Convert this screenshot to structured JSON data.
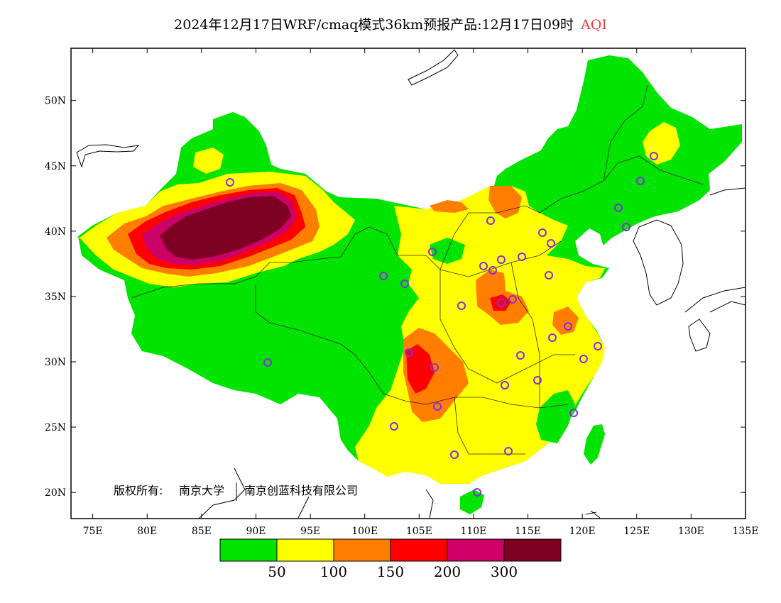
{
  "title": {
    "main": "2024年12月17日WRF/cmaq模式36km预报产品:12月17日09时",
    "variable": "AQI"
  },
  "axes": {
    "x_ticks": [
      "75E",
      "80E",
      "85E",
      "90E",
      "95E",
      "100E",
      "105E",
      "110E",
      "115E",
      "120E",
      "125E",
      "130E",
      "135E"
    ],
    "y_ticks": [
      "50N",
      "45N",
      "40N",
      "35N",
      "30N",
      "25N",
      "20N"
    ]
  },
  "copyright": {
    "label": "版权所有:",
    "org1": "南京大学",
    "org2": "南京创蓝科技有限公司"
  },
  "legend": {
    "colors": [
      "#00e400",
      "#ffff00",
      "#ff7e00",
      "#ff0000",
      "#cc0066",
      "#7e0023"
    ],
    "labels": [
      "50",
      "100",
      "150",
      "200",
      "300"
    ]
  },
  "colors": {
    "good": "#00e400",
    "moderate": "#ffff00",
    "usg": "#ff7e00",
    "unhealthy": "#ff0000",
    "very_unhealthy": "#cc0066",
    "hazardous": "#7e0023",
    "station": "#8a2be2"
  }
}
